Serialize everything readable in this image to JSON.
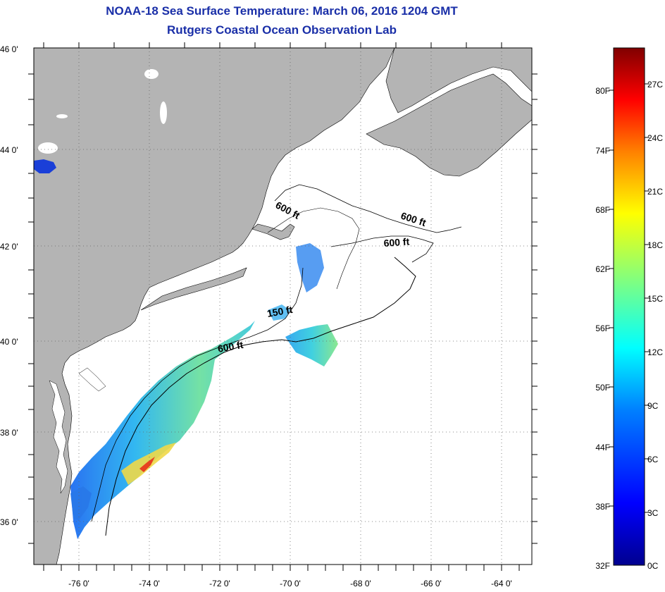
{
  "header": {
    "title": "NOAA-18 Sea Surface Temperature:  March 06, 2016 1204 GMT",
    "subtitle": "Rutgers Coastal Ocean Observation Lab"
  },
  "map": {
    "lon_range": [
      -77,
      -63
    ],
    "lat_range": [
      35,
      46
    ],
    "lon_ticks": [
      "-76 0'",
      "-74 0'",
      "-72 0'",
      "-70 0'",
      "-68 0'",
      "-66 0'",
      "-64 0'"
    ],
    "lat_ticks": [
      "46 0'",
      "44 0'",
      "42 0'",
      "40 0'",
      "38 0'",
      "36 0'"
    ],
    "grid": "dotted",
    "land_color": "#b4b4b4",
    "contour_labels": [
      {
        "text": "600 ft"
      },
      {
        "text": "600 ft"
      },
      {
        "text": "600 ft"
      },
      {
        "text": "150 ft"
      },
      {
        "text": "600 ft"
      }
    ]
  },
  "colorbar": {
    "min_c": 0,
    "max_c": 29,
    "fahrenheit_labels": [
      "80F",
      "74F",
      "68F",
      "62F",
      "56F",
      "50F",
      "44F",
      "38F",
      "32F"
    ],
    "celsius_labels": [
      "27C",
      "24C",
      "21C",
      "18C",
      "15C",
      "12C",
      "9C",
      "6C",
      "3C",
      "0C"
    ],
    "colors": [
      "#00008f",
      "#0000ff",
      "#0080ff",
      "#00ffff",
      "#80ff80",
      "#ffff00",
      "#ff8000",
      "#ff0000",
      "#800000"
    ]
  }
}
